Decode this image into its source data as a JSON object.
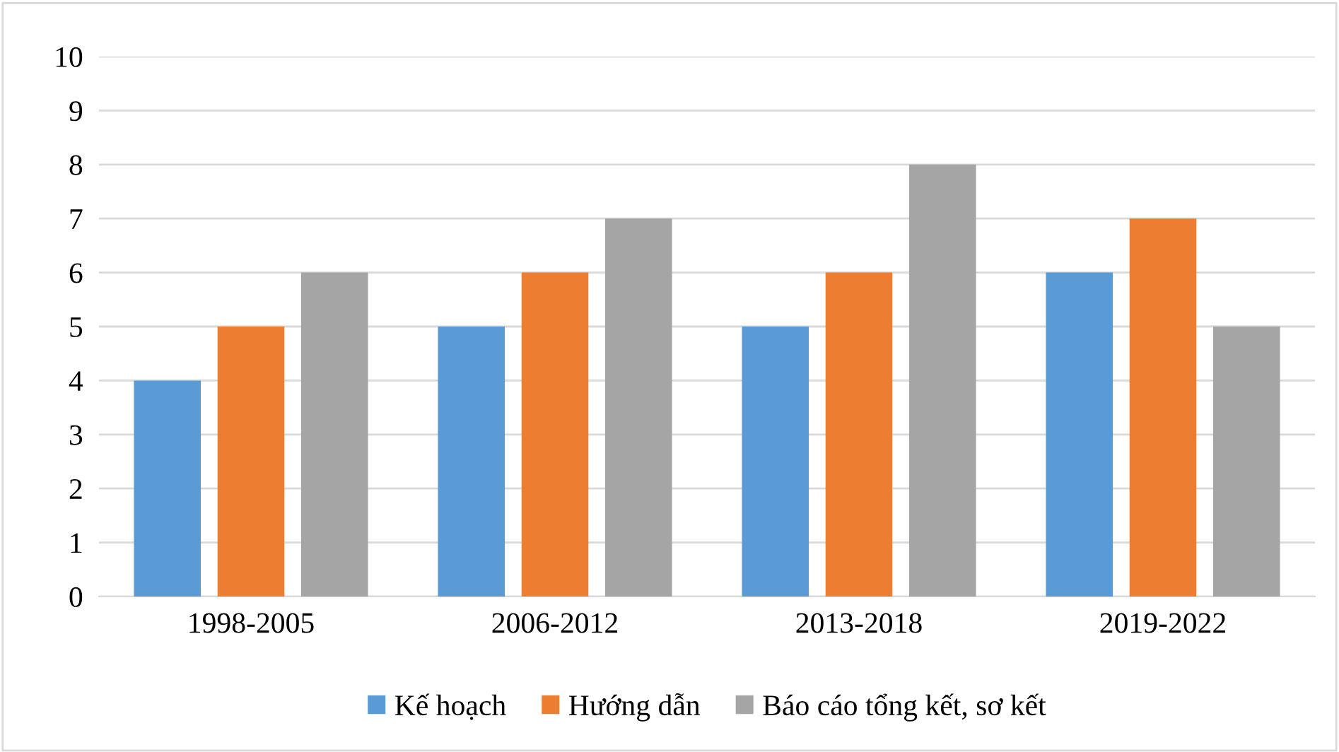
{
  "chart_data": {
    "type": "bar",
    "categories": [
      "1998-2005",
      "2006-2012",
      "2013-2018",
      "2019-2022"
    ],
    "series": [
      {
        "name": "Kế hoạch",
        "color": "#5b9bd5",
        "values": [
          4,
          5,
          5,
          6
        ]
      },
      {
        "name": "Hướng dẫn",
        "color": "#ed7d31",
        "values": [
          5,
          6,
          6,
          7
        ]
      },
      {
        "name": "Báo cáo tổng kết, sơ kết",
        "color": "#a5a5a5",
        "values": [
          6,
          7,
          8,
          5
        ]
      }
    ],
    "ylim": [
      0,
      10
    ],
    "yticks": [
      0,
      1,
      2,
      3,
      4,
      5,
      6,
      7,
      8,
      9,
      10
    ],
    "grid": "y",
    "legend": "bottom"
  }
}
